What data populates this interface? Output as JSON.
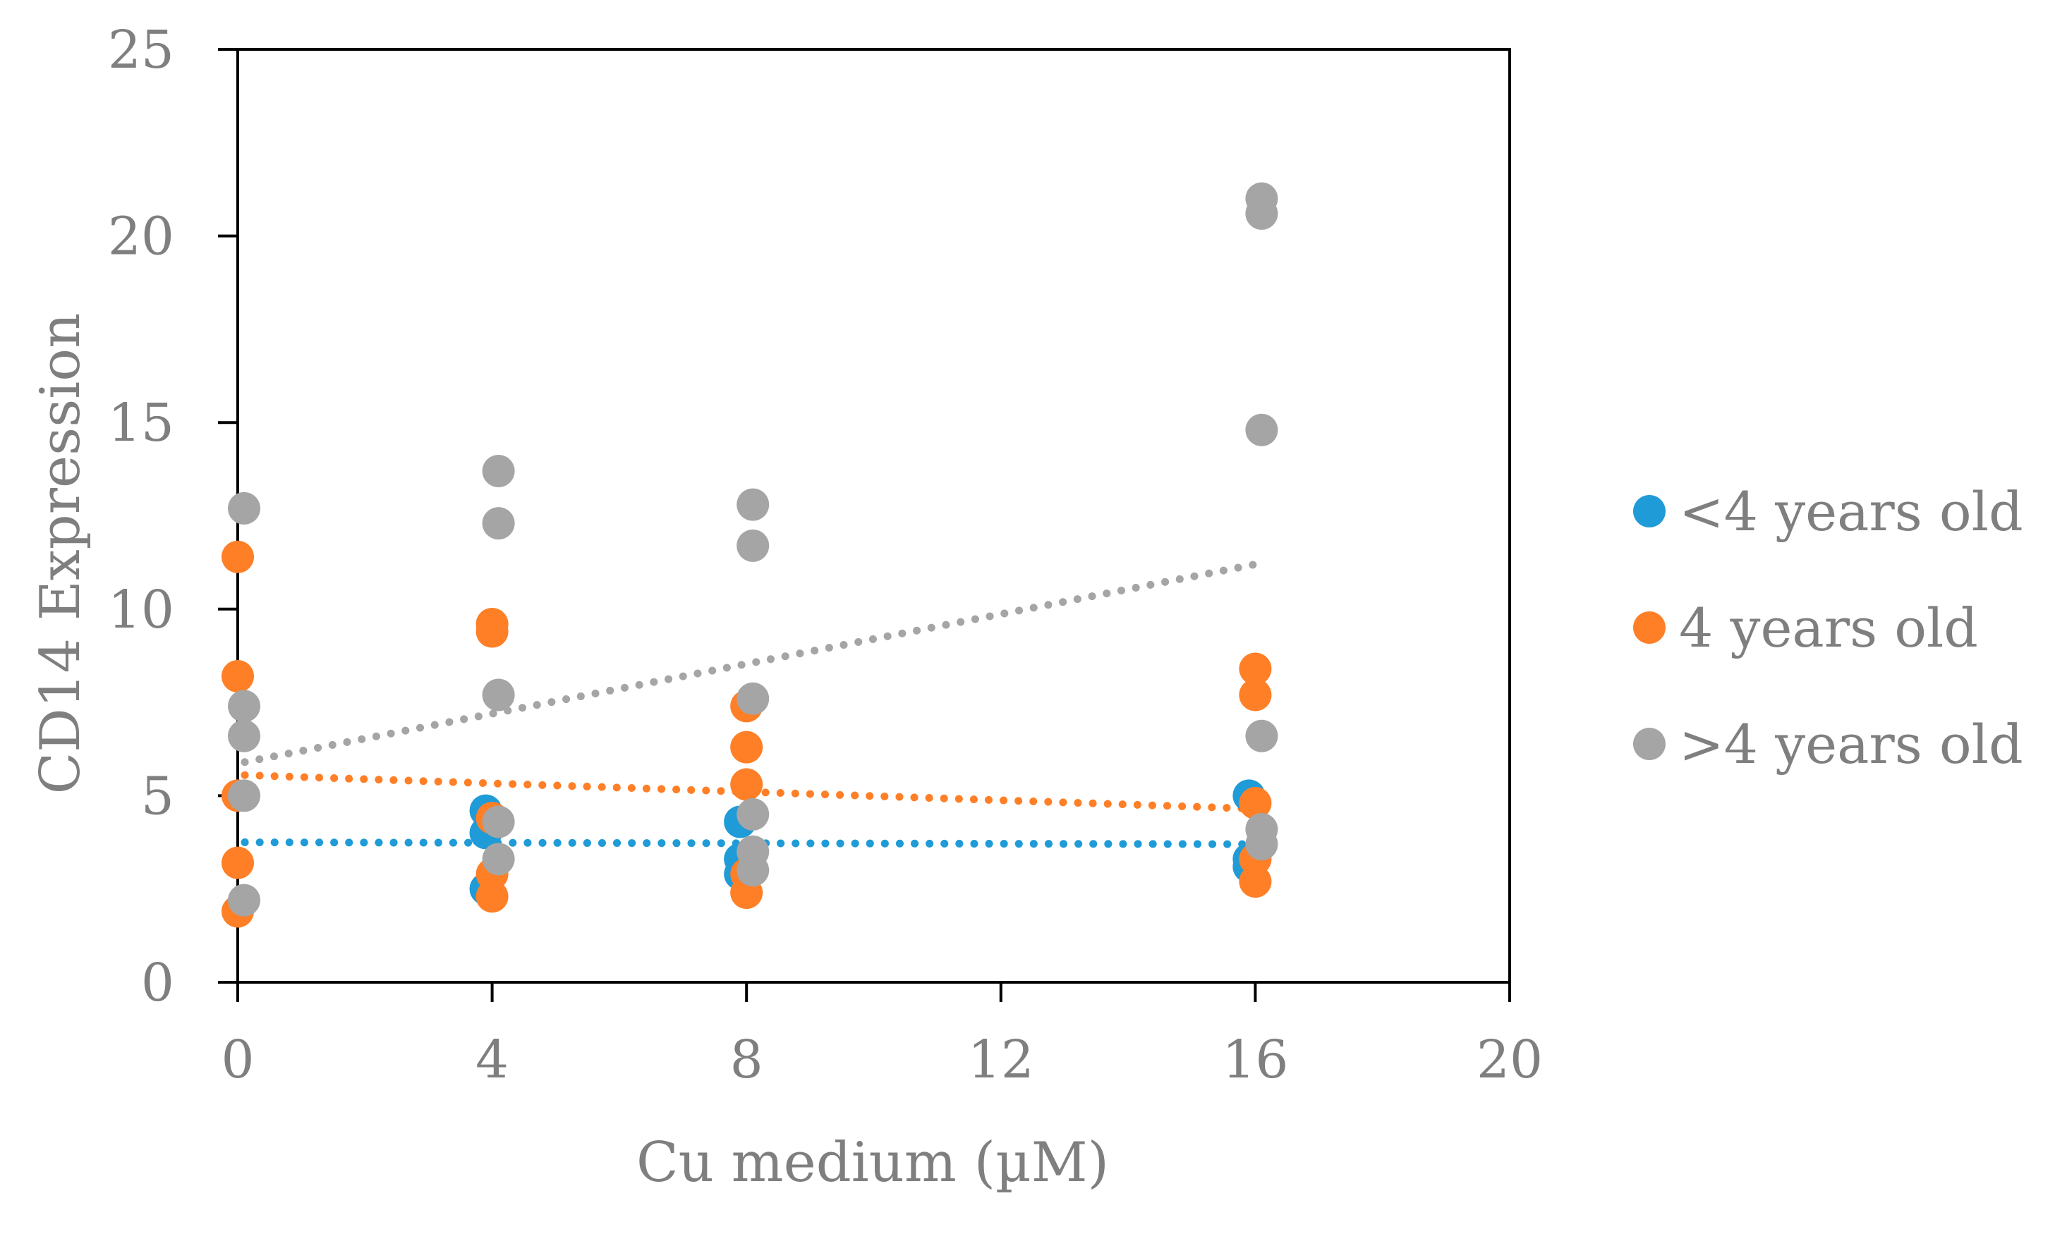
{
  "chart_data": {
    "type": "scatter",
    "title": "",
    "xlabel": "Cu medium (µM)",
    "ylabel": "CD14 Expression",
    "xlim": [
      0,
      20
    ],
    "ylim": [
      0,
      25
    ],
    "xticks": [
      "0",
      "4",
      "8",
      "12",
      "16",
      "20"
    ],
    "yticks": [
      "0",
      "5",
      "10",
      "15",
      "20",
      "25"
    ],
    "grid": false,
    "legend_position": "right",
    "series": [
      {
        "name": "<4 years old",
        "color": "#1f9bd7",
        "points": [
          {
            "x": 3.9,
            "y": 4.6
          },
          {
            "x": 3.9,
            "y": 4.0
          },
          {
            "x": 3.9,
            "y": 2.5
          },
          {
            "x": 7.9,
            "y": 4.3
          },
          {
            "x": 7.9,
            "y": 3.3
          },
          {
            "x": 7.9,
            "y": 2.9
          },
          {
            "x": 15.9,
            "y": 5.0
          },
          {
            "x": 15.9,
            "y": 3.3
          },
          {
            "x": 15.9,
            "y": 3.1
          }
        ],
        "trendline": {
          "x": [
            0,
            16
          ],
          "y": [
            3.75,
            3.7
          ]
        }
      },
      {
        "name": "4 years old",
        "color": "#ff7f27",
        "points": [
          {
            "x": 0.0,
            "y": 11.4
          },
          {
            "x": 0.0,
            "y": 8.2
          },
          {
            "x": 0.0,
            "y": 5.0
          },
          {
            "x": 0.0,
            "y": 3.2
          },
          {
            "x": 0.0,
            "y": 1.9
          },
          {
            "x": 4.0,
            "y": 9.6
          },
          {
            "x": 4.0,
            "y": 9.4
          },
          {
            "x": 4.0,
            "y": 4.4
          },
          {
            "x": 4.0,
            "y": 2.9
          },
          {
            "x": 4.0,
            "y": 2.3
          },
          {
            "x": 8.0,
            "y": 7.4
          },
          {
            "x": 8.0,
            "y": 6.3
          },
          {
            "x": 8.0,
            "y": 5.3
          },
          {
            "x": 8.0,
            "y": 2.9
          },
          {
            "x": 8.0,
            "y": 2.4
          },
          {
            "x": 16.0,
            "y": 8.4
          },
          {
            "x": 16.0,
            "y": 7.7
          },
          {
            "x": 16.0,
            "y": 4.8
          },
          {
            "x": 16.0,
            "y": 3.3
          },
          {
            "x": 16.0,
            "y": 2.7
          }
        ],
        "trendline": {
          "x": [
            0,
            16
          ],
          "y": [
            5.55,
            4.65
          ]
        }
      },
      {
        "name": ">4 years old",
        "color": "#a5a5a5",
        "points": [
          {
            "x": 0.1,
            "y": 12.7
          },
          {
            "x": 0.1,
            "y": 7.4
          },
          {
            "x": 0.1,
            "y": 6.6
          },
          {
            "x": 0.1,
            "y": 5.0
          },
          {
            "x": 0.1,
            "y": 2.2
          },
          {
            "x": 4.1,
            "y": 13.7
          },
          {
            "x": 4.1,
            "y": 12.3
          },
          {
            "x": 4.1,
            "y": 7.7
          },
          {
            "x": 4.1,
            "y": 4.3
          },
          {
            "x": 4.1,
            "y": 3.3
          },
          {
            "x": 8.1,
            "y": 12.8
          },
          {
            "x": 8.1,
            "y": 11.7
          },
          {
            "x": 8.1,
            "y": 7.6
          },
          {
            "x": 8.1,
            "y": 4.5
          },
          {
            "x": 8.1,
            "y": 3.5
          },
          {
            "x": 8.1,
            "y": 3.0
          },
          {
            "x": 16.1,
            "y": 21.0
          },
          {
            "x": 16.1,
            "y": 20.6
          },
          {
            "x": 16.1,
            "y": 14.8
          },
          {
            "x": 16.1,
            "y": 6.6
          },
          {
            "x": 16.1,
            "y": 4.1
          },
          {
            "x": 16.1,
            "y": 3.7
          }
        ],
        "trendline": {
          "x": [
            0,
            16
          ],
          "y": [
            5.9,
            11.2
          ]
        }
      }
    ]
  }
}
